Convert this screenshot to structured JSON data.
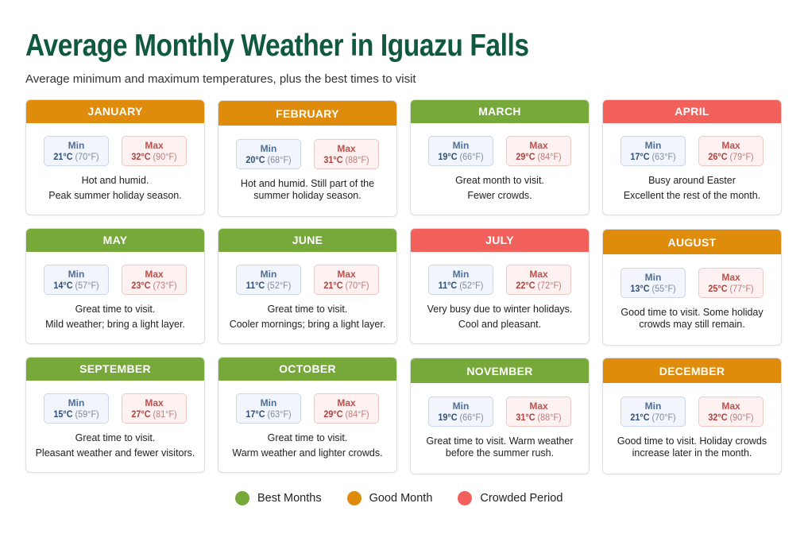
{
  "title": "Average Monthly Weather in Iguazu Falls",
  "subtitle": "Average minimum and maximum temperatures, plus the best times to visit",
  "labels": {
    "min": "Min",
    "max": "Max"
  },
  "colors": {
    "best": "#77a83a",
    "good": "#df8b0c",
    "crowded": "#f1605a",
    "title": "#0f5a3e"
  },
  "months": [
    {
      "name": "JANUARY",
      "category": "good",
      "min_c": "21°C",
      "min_f": "(70°F)",
      "max_c": "32°C",
      "max_f": "(90°F)",
      "desc1": "Hot and humid.",
      "desc2": "Peak summer holiday season."
    },
    {
      "name": "FEBRUARY",
      "category": "good",
      "min_c": "20°C",
      "min_f": "(68°F)",
      "max_c": "31°C",
      "max_f": "(88°F)",
      "desc1": "Hot and humid. Still part of the",
      "desc2": "summer holiday season."
    },
    {
      "name": "MARCH",
      "category": "best",
      "min_c": "19°C",
      "min_f": "(66°F)",
      "max_c": "29°C",
      "max_f": "(84°F)",
      "desc1": "Great month to visit.",
      "desc2": "Fewer crowds."
    },
    {
      "name": "APRIL",
      "category": "crowded",
      "min_c": "17°C",
      "min_f": "(63°F)",
      "max_c": "26°C",
      "max_f": "(79°F)",
      "desc1": "Busy around Easter",
      "desc2": "Excellent the rest of the month."
    },
    {
      "name": "MAY",
      "category": "best",
      "min_c": "14°C",
      "min_f": "(57°F)",
      "max_c": "23°C",
      "max_f": "(73°F)",
      "desc1": "Great time to visit.",
      "desc2": "Mild weather; bring a light layer."
    },
    {
      "name": "JUNE",
      "category": "best",
      "min_c": "11°C",
      "min_f": "(52°F)",
      "max_c": "21°C",
      "max_f": "(70°F)",
      "desc1": "Great time to visit.",
      "desc2": "Cooler mornings; bring a light layer."
    },
    {
      "name": "JULY",
      "category": "crowded",
      "min_c": "11°C",
      "min_f": "(52°F)",
      "max_c": "22°C",
      "max_f": "(72°F)",
      "desc1": "Very busy due to winter holidays.",
      "desc2": "Cool and pleasant."
    },
    {
      "name": "AUGUST",
      "category": "good",
      "min_c": "13°C",
      "min_f": "(55°F)",
      "max_c": "25°C",
      "max_f": "(77°F)",
      "desc1": "Good time to visit. Some holiday",
      "desc2": "crowds may still remain."
    },
    {
      "name": "SEPTEMBER",
      "category": "best",
      "min_c": "15°C",
      "min_f": "(59°F)",
      "max_c": "27°C",
      "max_f": "(81°F)",
      "desc1": "Great time to visit.",
      "desc2": "Pleasant weather and fewer visitors."
    },
    {
      "name": "OCTOBER",
      "category": "best",
      "min_c": "17°C",
      "min_f": "(63°F)",
      "max_c": "29°C",
      "max_f": "(84°F)",
      "desc1": "Great time to visit.",
      "desc2": "Warm weather and lighter crowds."
    },
    {
      "name": "NOVEMBER",
      "category": "best",
      "min_c": "19°C",
      "min_f": "(66°F)",
      "max_c": "31°C",
      "max_f": "(88°F)",
      "desc1": "Great time to visit. Warm weather",
      "desc2": "before the summer rush."
    },
    {
      "name": "DECEMBER",
      "category": "good",
      "min_c": "21°C",
      "min_f": "(70°F)",
      "max_c": "32°C",
      "max_f": "(90°F)",
      "desc1": "Good time to visit. Holiday crowds",
      "desc2": "increase later in the month."
    }
  ],
  "legend": [
    {
      "label": "Best Months",
      "category": "best"
    },
    {
      "label": "Good Month",
      "category": "good"
    },
    {
      "label": "Crowded Period",
      "category": "crowded"
    }
  ]
}
